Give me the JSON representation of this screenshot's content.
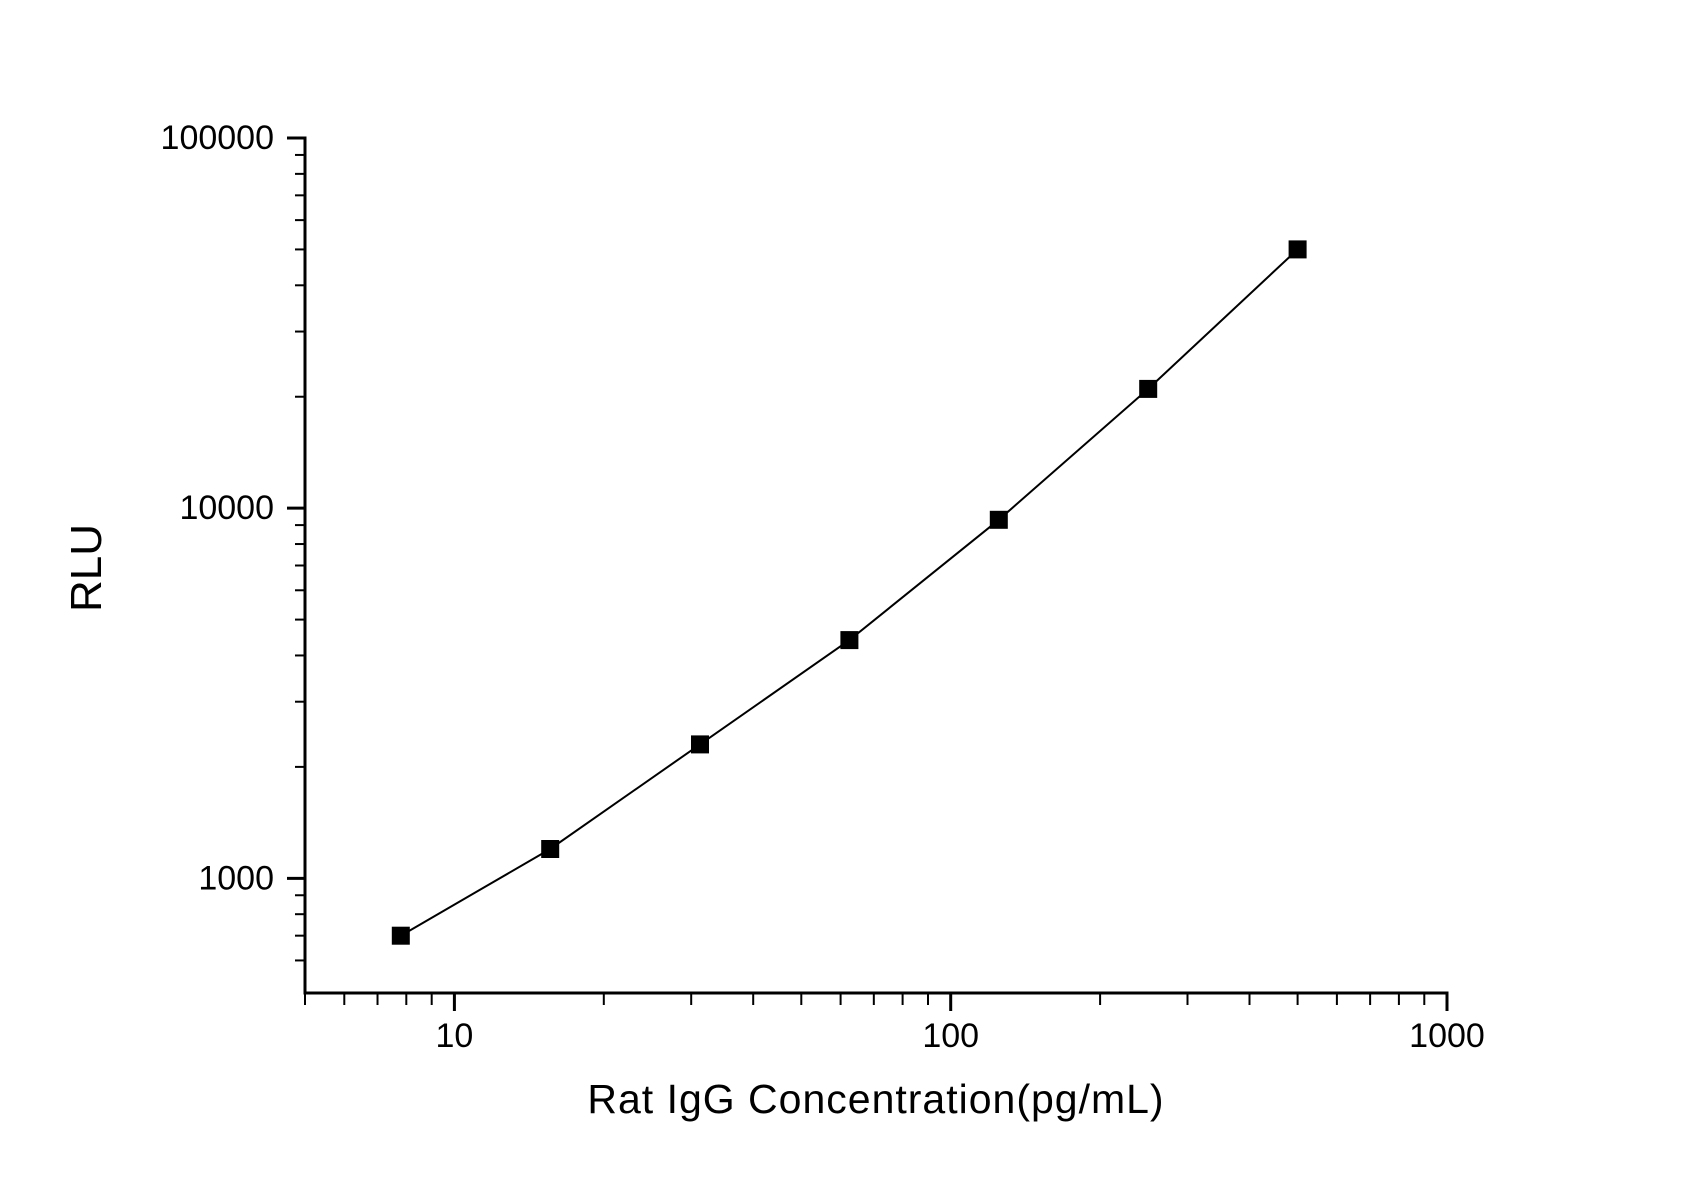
{
  "chart_data": {
    "type": "line",
    "title": "",
    "xlabel": "Rat IgG Concentration(pg/mL)",
    "ylabel": "RLU",
    "x_scale": "log",
    "y_scale": "log",
    "xlim": [
      5,
      1000
    ],
    "ylim": [
      490,
      100000
    ],
    "x": [
      7.8,
      15.6,
      31.25,
      62.5,
      125,
      250,
      500
    ],
    "y": [
      700,
      1200,
      2300,
      4400,
      9300,
      21000,
      50000
    ],
    "marker": "filled-square",
    "marker_color": "#000000",
    "line_color": "#000000",
    "axis_color": "#000000",
    "text_color": "#000000",
    "grid": false,
    "legend": "none",
    "background": "#ffffff",
    "x_axis": {
      "major_ticks": [
        10,
        100,
        1000
      ],
      "major_labels": [
        "10",
        "100",
        "1000"
      ],
      "minor_ticks": [
        5,
        6,
        7,
        8,
        9,
        20,
        30,
        40,
        50,
        60,
        70,
        80,
        90,
        200,
        300,
        400,
        500,
        600,
        700,
        800,
        900
      ]
    },
    "y_axis": {
      "major_ticks": [
        1000,
        10000,
        100000
      ],
      "major_labels": [
        "1000",
        "10000",
        "100000"
      ],
      "minor_ticks": [
        600,
        700,
        800,
        900,
        2000,
        3000,
        4000,
        5000,
        6000,
        7000,
        8000,
        9000,
        20000,
        30000,
        40000,
        50000,
        60000,
        70000,
        80000,
        90000
      ]
    }
  }
}
